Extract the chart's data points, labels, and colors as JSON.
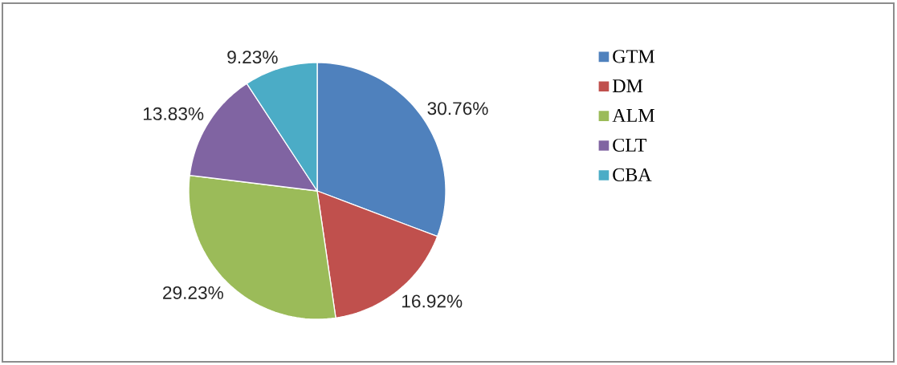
{
  "chart_data": {
    "type": "pie",
    "categories": [
      "GTM",
      "DM",
      "ALM",
      "CLT",
      "CBA"
    ],
    "values": [
      30.76,
      16.92,
      29.23,
      13.83,
      9.23
    ],
    "colors": [
      "#4f81bd",
      "#c0504d",
      "#9bbb59",
      "#8064a2",
      "#4bacc6"
    ],
    "value_labels": [
      "30.76%",
      "16.92%",
      "29.23%",
      "13.83%",
      "9.23%"
    ],
    "legend": "right"
  }
}
